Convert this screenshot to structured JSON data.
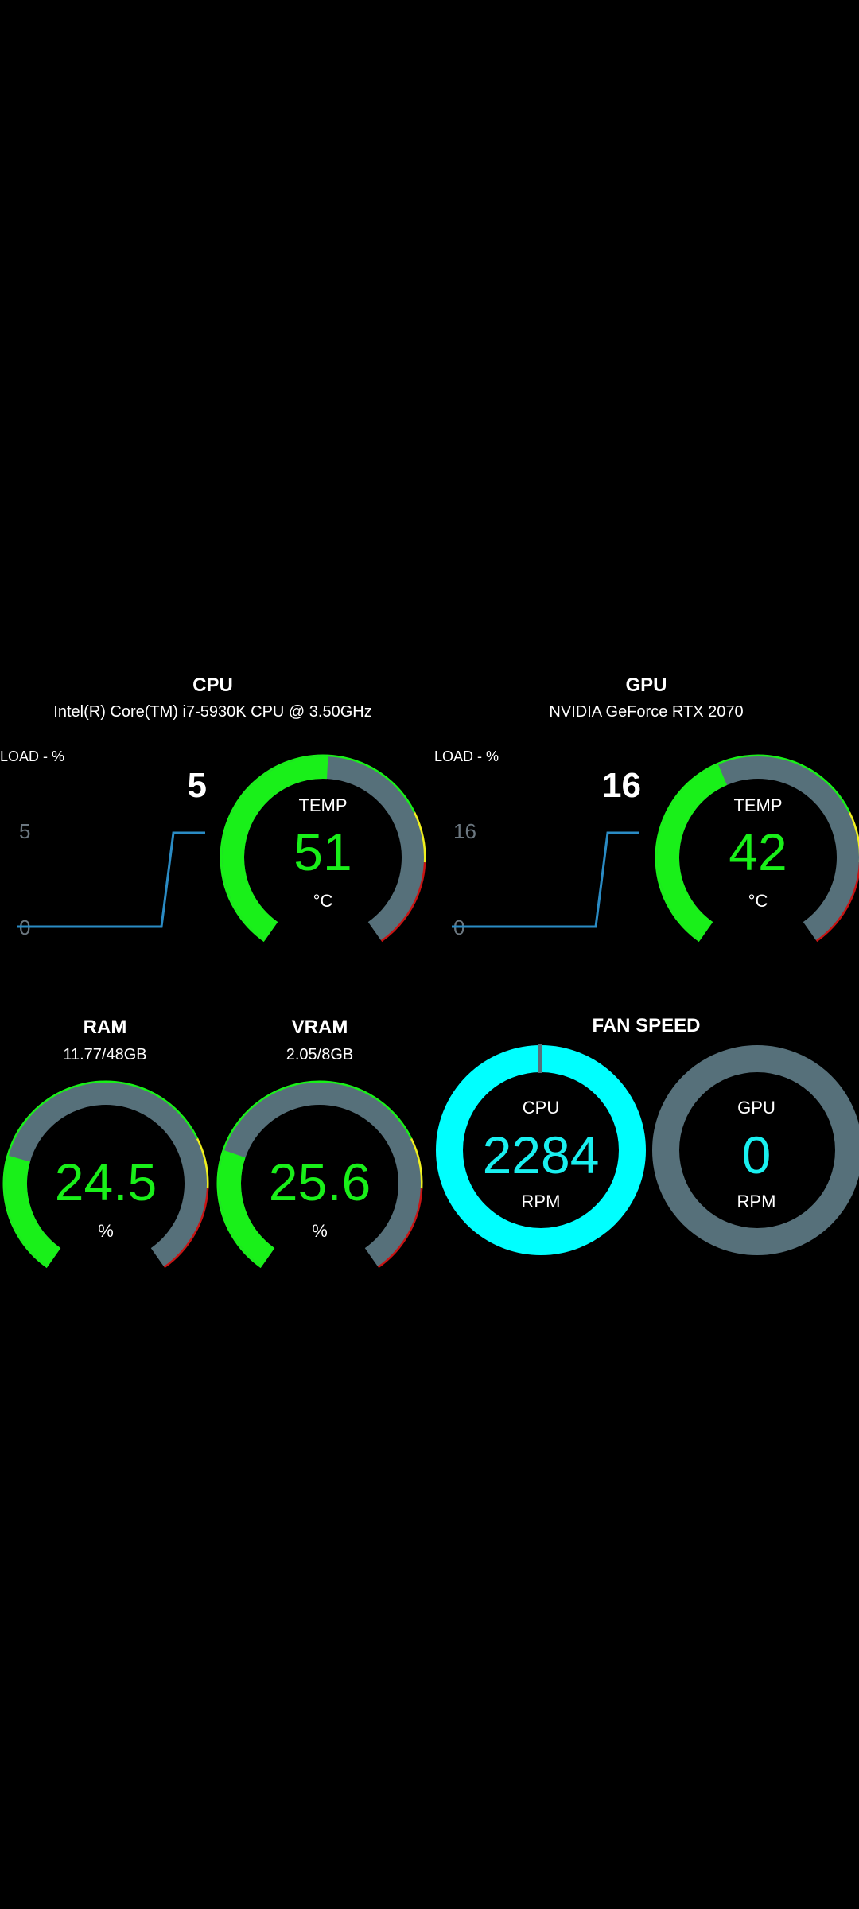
{
  "cpu": {
    "title": "CPU",
    "model": "Intel(R) Core(TM) i7-5930K CPU @ 3.50GHz",
    "load_label": "LOAD - %",
    "load_value": "5",
    "load_axis_max": "5",
    "load_axis_min": "0",
    "temp_label": "TEMP",
    "temp_value": "51",
    "temp_unit": "°C",
    "temp_fraction": 0.51
  },
  "gpu": {
    "title": "GPU",
    "model": "NVIDIA GeForce RTX 2070",
    "load_label": "LOAD - %",
    "load_value": "16",
    "load_axis_max": "16",
    "load_axis_min": "0",
    "temp_label": "TEMP",
    "temp_value": "42",
    "temp_unit": "°C",
    "temp_fraction": 0.42
  },
  "ram": {
    "title": "RAM",
    "usage": "11.77/48GB",
    "value": "24.5",
    "unit": "%",
    "fraction": 0.245
  },
  "vram": {
    "title": "VRAM",
    "usage": "2.05/8GB",
    "value": "25.6",
    "unit": "%",
    "fraction": 0.256
  },
  "fan": {
    "title": "FAN SPEED",
    "cpu_label": "CPU",
    "cpu_value": "2284",
    "cpu_unit": "RPM",
    "gpu_label": "GPU",
    "gpu_value": "0",
    "gpu_unit": "RPM"
  },
  "colors": {
    "green": "#19f019",
    "track": "#56707a",
    "yellow": "#f0f01e",
    "red": "#c81414",
    "cyan": "#00ffff",
    "line": "#2a8bc4"
  }
}
